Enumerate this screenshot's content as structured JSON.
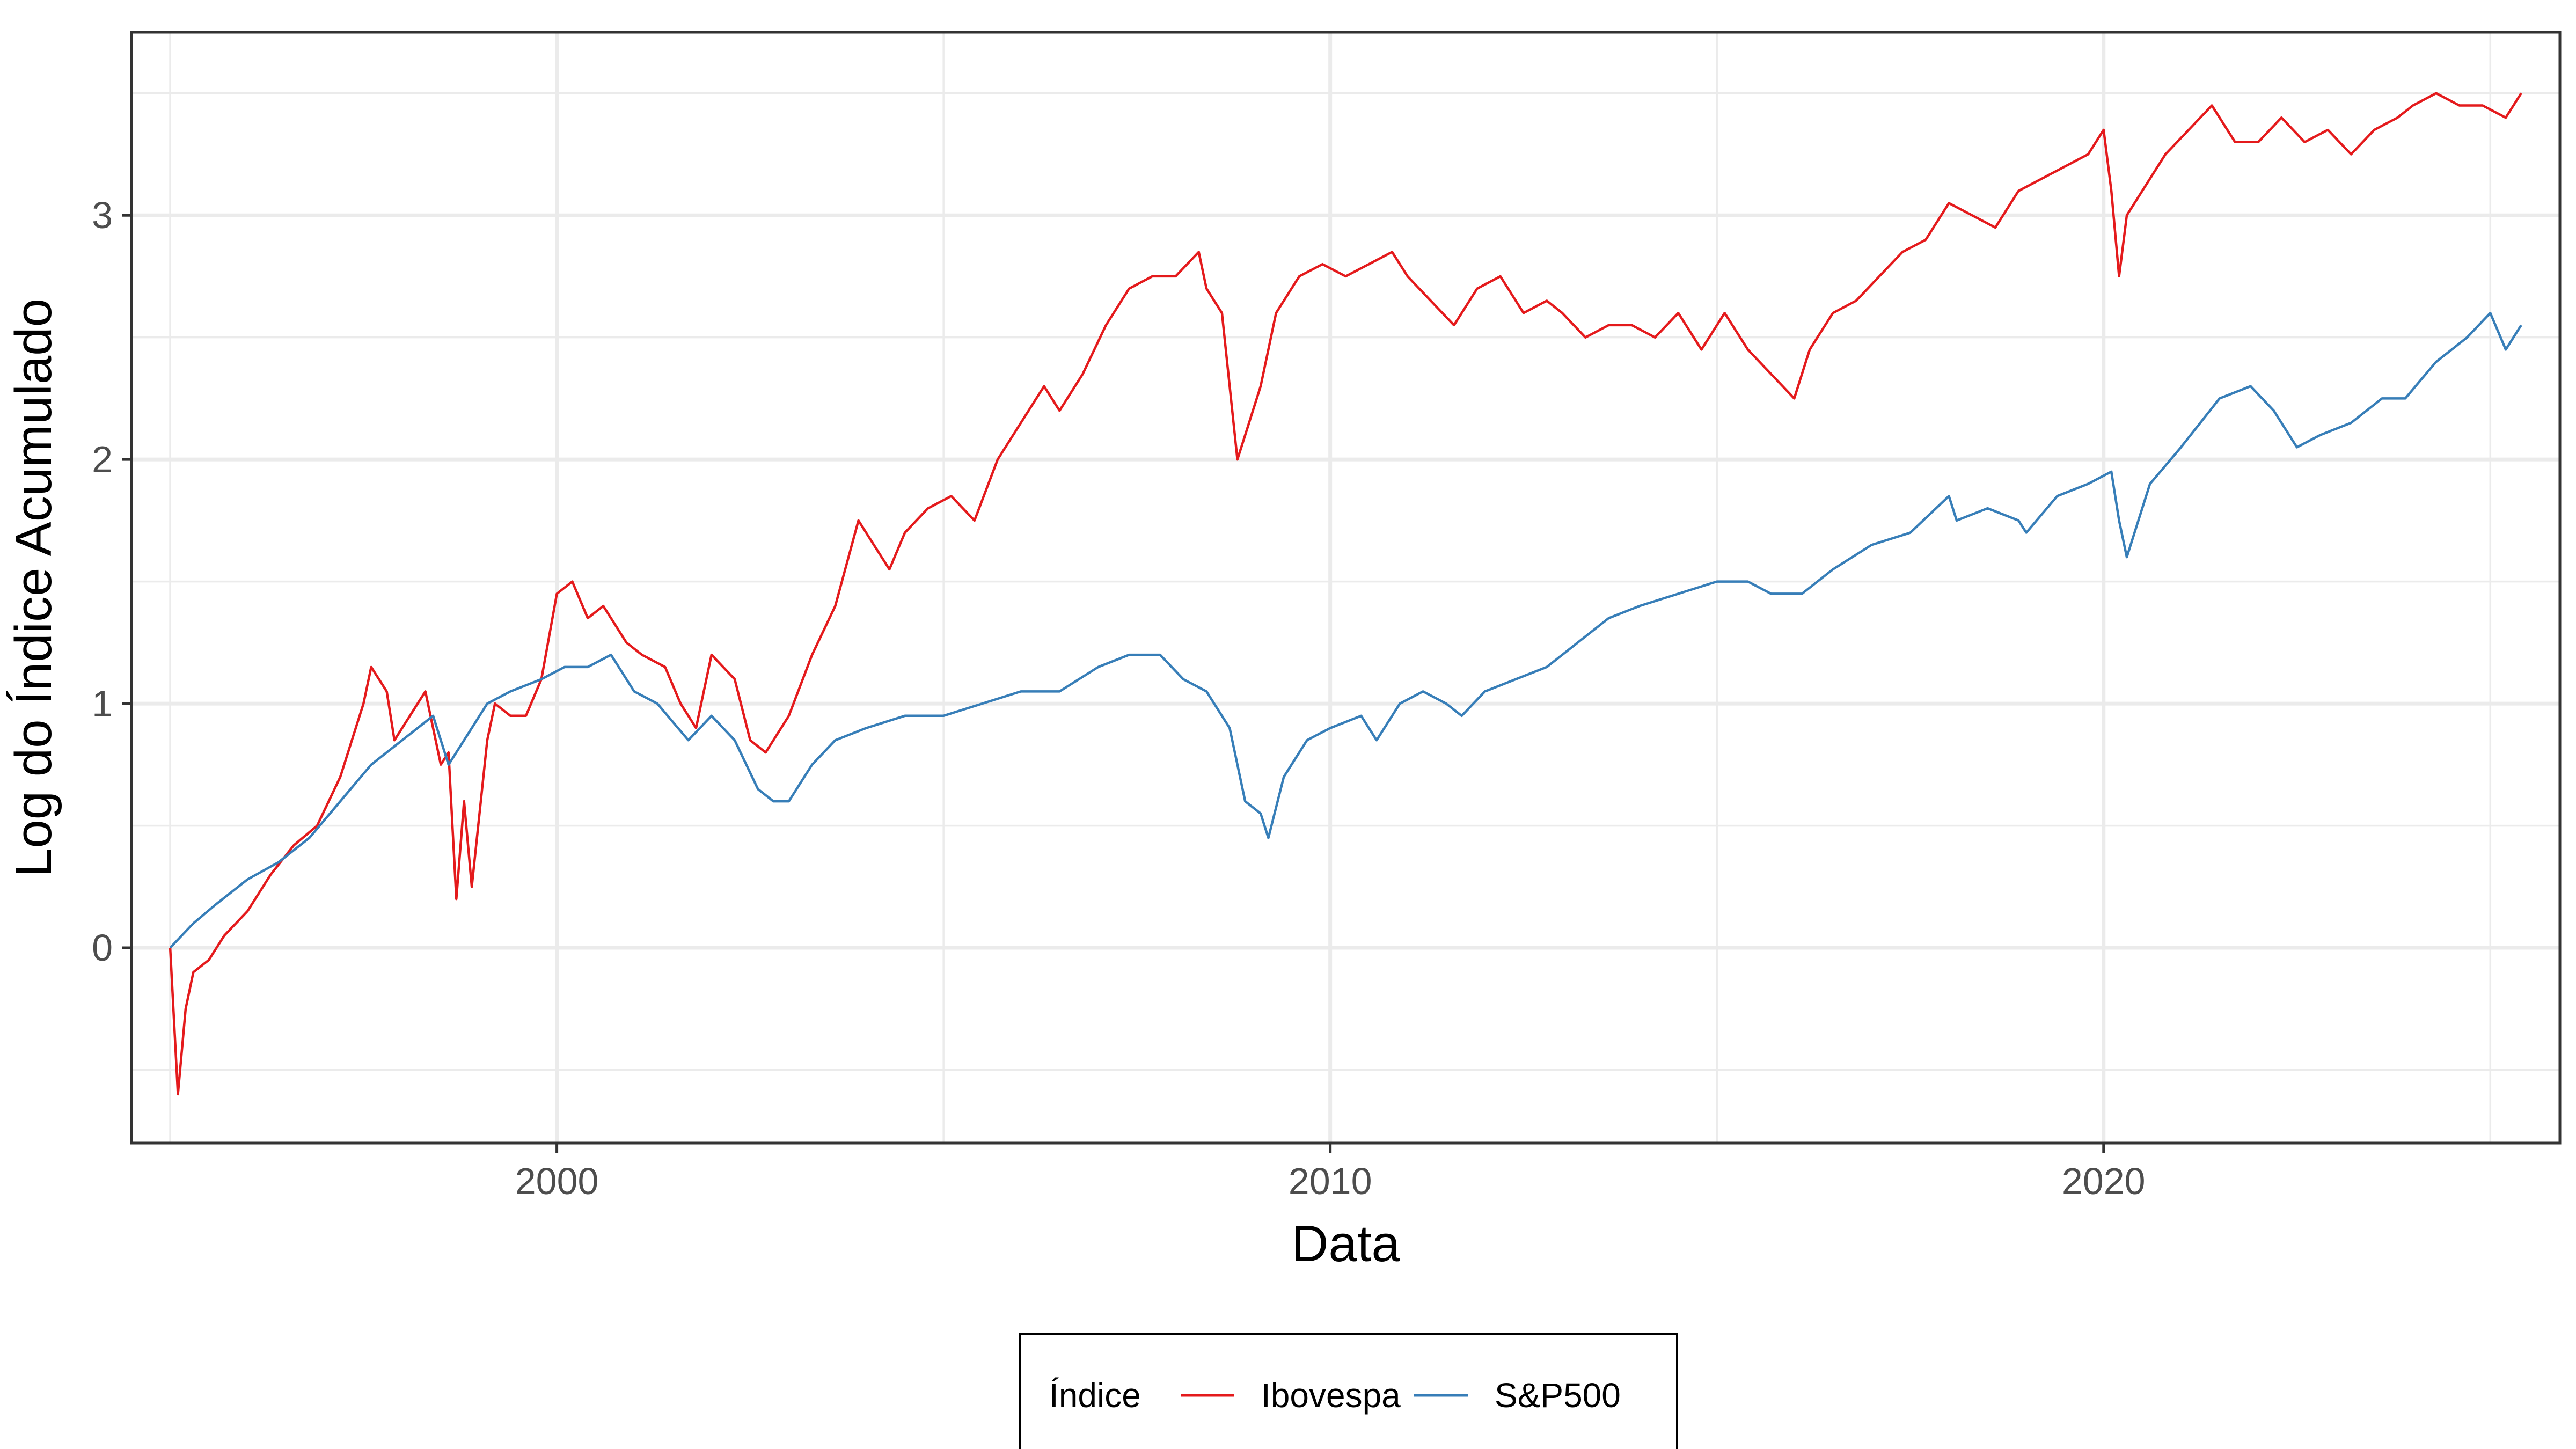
{
  "chart_data": {
    "type": "line",
    "xlabel": "Data",
    "ylabel": "Log do Índice Acumulado",
    "xlim": [
      1994.5,
      2025.9
    ],
    "ylim": [
      -0.8,
      3.75
    ],
    "x_ticks": [
      2000,
      2010,
      2020
    ],
    "x_tick_labels": [
      "2000",
      "2010",
      "2020"
    ],
    "y_ticks": [
      0,
      1,
      2,
      3
    ],
    "y_tick_labels": [
      "0",
      "1",
      "2",
      "3"
    ],
    "grid": true,
    "legend": {
      "title": "Índice",
      "placement": "bottom"
    },
    "series": [
      {
        "name": "Ibovespa",
        "color": "#E41A1C",
        "x": [
          1995.0,
          1995.1,
          1995.2,
          1995.3,
          1995.5,
          1995.7,
          1996.0,
          1996.3,
          1996.6,
          1996.9,
          1997.2,
          1997.5,
          1997.6,
          1997.8,
          1997.9,
          1998.1,
          1998.3,
          1998.5,
          1998.6,
          1998.7,
          1998.8,
          1998.9,
          1999.0,
          1999.1,
          1999.2,
          1999.4,
          1999.6,
          1999.8,
          2000.0,
          2000.2,
          2000.4,
          2000.6,
          2000.9,
          2001.1,
          2001.4,
          2001.6,
          2001.8,
          2002.0,
          2002.3,
          2002.5,
          2002.7,
          2002.8,
          2003.0,
          2003.3,
          2003.6,
          2003.9,
          2004.1,
          2004.3,
          2004.5,
          2004.8,
          2005.1,
          2005.4,
          2005.7,
          2006.0,
          2006.3,
          2006.5,
          2006.8,
          2007.1,
          2007.4,
          2007.7,
          2008.0,
          2008.3,
          2008.4,
          2008.6,
          2008.8,
          2008.9,
          2009.1,
          2009.3,
          2009.6,
          2009.9,
          2010.2,
          2010.5,
          2010.8,
          2011.0,
          2011.3,
          2011.6,
          2011.9,
          2012.2,
          2012.5,
          2012.8,
          2013.0,
          2013.3,
          2013.6,
          2013.9,
          2014.2,
          2014.5,
          2014.8,
          2015.1,
          2015.4,
          2015.7,
          2016.0,
          2016.2,
          2016.5,
          2016.8,
          2017.1,
          2017.4,
          2017.7,
          2018.0,
          2018.3,
          2018.6,
          2018.9,
          2019.2,
          2019.5,
          2019.8,
          2020.0,
          2020.1,
          2020.2,
          2020.3,
          2020.5,
          2020.8,
          2021.1,
          2021.4,
          2021.7,
          2022.0,
          2022.3,
          2022.6,
          2022.9,
          2023.2,
          2023.5,
          2023.8,
          2024.0,
          2024.3,
          2024.6,
          2024.9,
          2025.2,
          2025.4
        ],
        "values": [
          0.0,
          -0.6,
          -0.25,
          -0.1,
          -0.05,
          0.05,
          0.15,
          0.3,
          0.42,
          0.5,
          0.7,
          1.0,
          1.15,
          1.05,
          0.85,
          0.95,
          1.05,
          0.75,
          0.8,
          0.2,
          0.6,
          0.25,
          0.55,
          0.85,
          1.0,
          0.95,
          0.95,
          1.1,
          1.45,
          1.5,
          1.35,
          1.4,
          1.25,
          1.2,
          1.15,
          1.0,
          0.9,
          1.2,
          1.1,
          0.85,
          0.8,
          0.85,
          0.95,
          1.2,
          1.4,
          1.75,
          1.65,
          1.55,
          1.7,
          1.8,
          1.85,
          1.75,
          2.0,
          2.15,
          2.3,
          2.2,
          2.35,
          2.55,
          2.7,
          2.75,
          2.75,
          2.85,
          2.7,
          2.6,
          2.0,
          2.1,
          2.3,
          2.6,
          2.75,
          2.8,
          2.75,
          2.8,
          2.85,
          2.75,
          2.65,
          2.55,
          2.7,
          2.75,
          2.6,
          2.65,
          2.6,
          2.5,
          2.55,
          2.55,
          2.5,
          2.6,
          2.45,
          2.6,
          2.45,
          2.35,
          2.25,
          2.45,
          2.6,
          2.65,
          2.75,
          2.85,
          2.9,
          3.05,
          3.0,
          2.95,
          3.1,
          3.15,
          3.2,
          3.25,
          3.35,
          3.1,
          2.75,
          3.0,
          3.1,
          3.25,
          3.35,
          3.45,
          3.3,
          3.3,
          3.4,
          3.3,
          3.35,
          3.25,
          3.35,
          3.4,
          3.45,
          3.5,
          3.45,
          3.45,
          3.4,
          3.5
        ]
      },
      {
        "name": "S&P500",
        "color": "#377EB8",
        "x": [
          1995.0,
          1995.3,
          1995.6,
          1996.0,
          1996.4,
          1996.8,
          1997.2,
          1997.6,
          1998.0,
          1998.4,
          1998.6,
          1998.8,
          1999.1,
          1999.4,
          1999.8,
          2000.1,
          2000.4,
          2000.7,
          2001.0,
          2001.3,
          2001.7,
          2002.0,
          2002.3,
          2002.6,
          2002.8,
          2003.0,
          2003.3,
          2003.6,
          2004.0,
          2004.5,
          2005.0,
          2005.5,
          2006.0,
          2006.5,
          2007.0,
          2007.4,
          2007.8,
          2008.1,
          2008.4,
          2008.7,
          2008.9,
          2009.1,
          2009.2,
          2009.4,
          2009.7,
          2010.0,
          2010.4,
          2010.6,
          2010.9,
          2011.2,
          2011.5,
          2011.7,
          2012.0,
          2012.4,
          2012.8,
          2013.2,
          2013.6,
          2014.0,
          2014.5,
          2015.0,
          2015.4,
          2015.7,
          2016.1,
          2016.5,
          2017.0,
          2017.5,
          2018.0,
          2018.1,
          2018.5,
          2018.9,
          2019.0,
          2019.4,
          2019.8,
          2020.1,
          2020.2,
          2020.3,
          2020.6,
          2021.0,
          2021.5,
          2021.9,
          2022.2,
          2022.5,
          2022.8,
          2023.2,
          2023.6,
          2023.9,
          2024.3,
          2024.7,
          2025.0,
          2025.2,
          2025.4
        ],
        "values": [
          0.0,
          0.1,
          0.18,
          0.28,
          0.35,
          0.45,
          0.6,
          0.75,
          0.85,
          0.95,
          0.75,
          0.85,
          1.0,
          1.05,
          1.1,
          1.15,
          1.15,
          1.2,
          1.05,
          1.0,
          0.85,
          0.95,
          0.85,
          0.65,
          0.6,
          0.6,
          0.75,
          0.85,
          0.9,
          0.95,
          0.95,
          1.0,
          1.05,
          1.05,
          1.15,
          1.2,
          1.2,
          1.1,
          1.05,
          0.9,
          0.6,
          0.55,
          0.45,
          0.7,
          0.85,
          0.9,
          0.95,
          0.85,
          1.0,
          1.05,
          1.0,
          0.95,
          1.05,
          1.1,
          1.15,
          1.25,
          1.35,
          1.4,
          1.45,
          1.5,
          1.5,
          1.45,
          1.45,
          1.55,
          1.65,
          1.7,
          1.85,
          1.75,
          1.8,
          1.75,
          1.7,
          1.85,
          1.9,
          1.95,
          1.75,
          1.6,
          1.9,
          2.05,
          2.25,
          2.3,
          2.2,
          2.05,
          2.1,
          2.15,
          2.25,
          2.25,
          2.4,
          2.5,
          2.6,
          2.45,
          2.55
        ]
      }
    ]
  }
}
